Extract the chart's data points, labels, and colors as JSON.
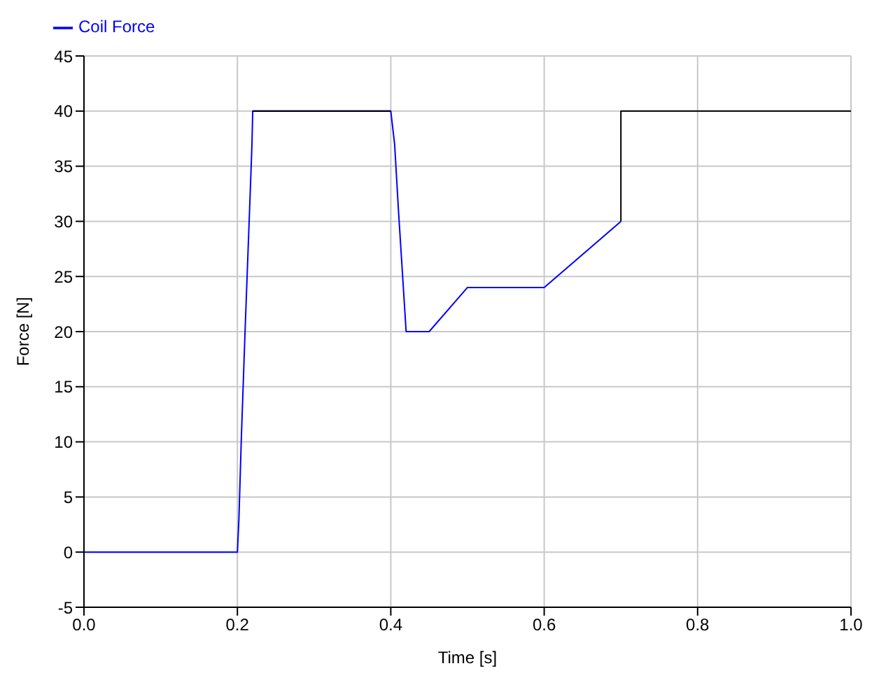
{
  "chart_data": {
    "type": "line",
    "xlabel": "Time [s]",
    "ylabel": "Force [N]",
    "xlim": [
      0,
      1
    ],
    "xticks": [
      {
        "value": 0,
        "label": "0.0"
      },
      {
        "value": 0.2,
        "label": "0.2"
      },
      {
        "value": 0.4,
        "label": "0.4"
      },
      {
        "value": 0.6,
        "label": "0.6"
      },
      {
        "value": 0.8,
        "label": "0.8"
      },
      {
        "value": 1,
        "label": "1.0"
      }
    ],
    "ylim": [
      -5,
      45
    ],
    "yticks": [
      -5,
      0,
      5,
      10,
      15,
      20,
      25,
      30,
      35,
      40,
      45
    ],
    "grid": true,
    "legend": "top left",
    "series": [
      {
        "name": "Coil Force",
        "color": "#0000ff",
        "x": [
          0,
          0.2,
          0.202,
          0.205,
          0.21,
          0.218,
          0.219,
          0.22,
          0.4,
          0.405,
          0.41,
          0.42,
          0.45,
          0.5,
          0.6,
          0.7
        ],
        "values": [
          0,
          0,
          3,
          10,
          20,
          35,
          37,
          40,
          40,
          37,
          31,
          20,
          20,
          24,
          24,
          30
        ]
      },
      {
        "color": "#000000",
        "x": [
          0.22,
          0.4,
          0.55,
          0.7,
          0.7,
          1.0
        ],
        "values": [
          40,
          40,
          null,
          30,
          40,
          40
        ]
      }
    ]
  }
}
